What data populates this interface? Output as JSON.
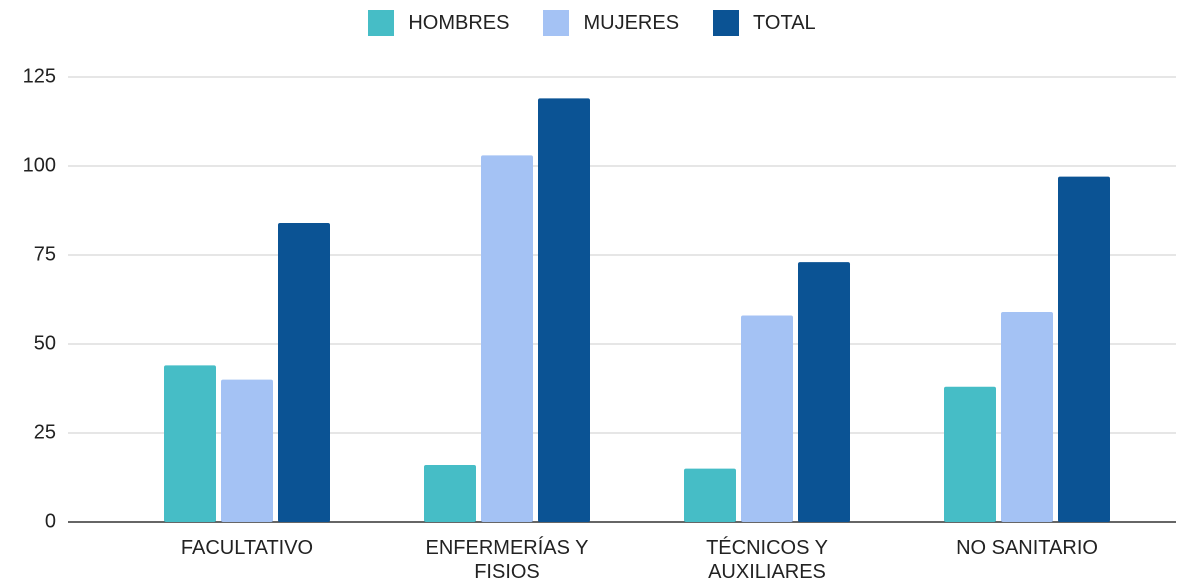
{
  "chart_data": {
    "type": "bar",
    "categories": [
      "FACULTATIVO",
      "ENFERMERÍAS Y FISIOS",
      "TÉCNICOS Y AUXILIARES",
      "NO SANITARIO"
    ],
    "series": [
      {
        "name": "HOMBRES",
        "color": "#46bdc6",
        "values": [
          44,
          16,
          15,
          38
        ]
      },
      {
        "name": "MUJERES",
        "color": "#a4c2f4",
        "values": [
          40,
          103,
          58,
          59
        ]
      },
      {
        "name": "TOTAL",
        "color": "#0b5394",
        "values": [
          84,
          119,
          73,
          97
        ]
      }
    ],
    "ylim": [
      0,
      125
    ],
    "yticks": [
      0,
      25,
      50,
      75,
      100,
      125
    ],
    "grid": true,
    "legend": "top"
  }
}
